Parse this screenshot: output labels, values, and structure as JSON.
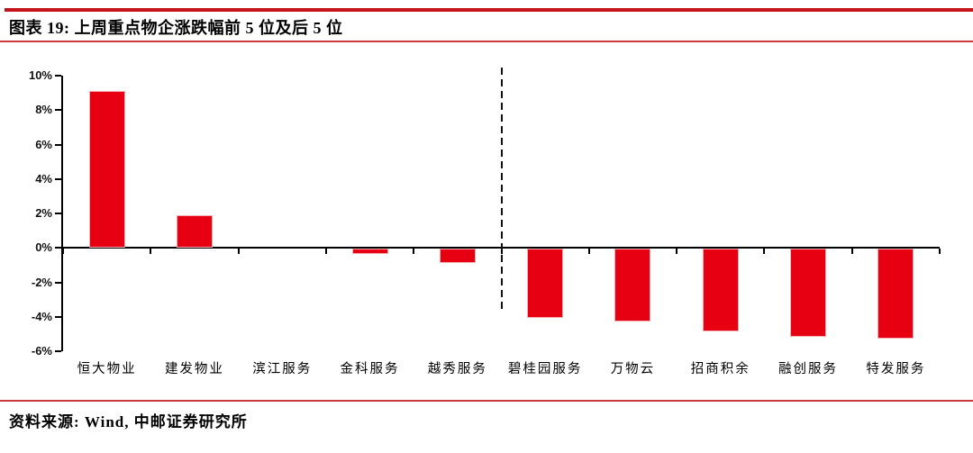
{
  "header": {
    "title": "图表 19: 上周重点物企涨跌幅前 5 位及后 5 位"
  },
  "footer": {
    "source": "资料来源: Wind, 中邮证券研究所"
  },
  "colors": {
    "rule_red": "#c4151c",
    "bar_red": "#e60012",
    "bar_edge": "#f3aeb2",
    "axis_black": "#000000"
  },
  "chart_data": {
    "type": "bar",
    "title": "",
    "xlabel": "",
    "ylabel": "",
    "categories": [
      "恒大物业",
      "建发物业",
      "滨江服务",
      "金科服务",
      "越秀服务",
      "碧桂园服务",
      "万物云",
      "招商积余",
      "融创服务",
      "特发服务"
    ],
    "values": [
      9.1,
      1.9,
      0.0,
      -0.3,
      -0.8,
      -4.0,
      -4.2,
      -4.8,
      -5.1,
      -5.2
    ],
    "ylim": [
      -6,
      10
    ],
    "yticks": [
      {
        "value": 10,
        "label": "10%"
      },
      {
        "value": 8,
        "label": "8%"
      },
      {
        "value": 6,
        "label": "6%"
      },
      {
        "value": 4,
        "label": "4%"
      },
      {
        "value": 2,
        "label": "2%"
      },
      {
        "value": 0,
        "label": "0%"
      },
      {
        "value": -2,
        "label": "-2%"
      },
      {
        "value": -4,
        "label": "-4%"
      },
      {
        "value": -6,
        "label": "-6%"
      }
    ],
    "grid": false,
    "legend": null,
    "separator": {
      "after_category_index": 4,
      "style": "dashed"
    }
  }
}
